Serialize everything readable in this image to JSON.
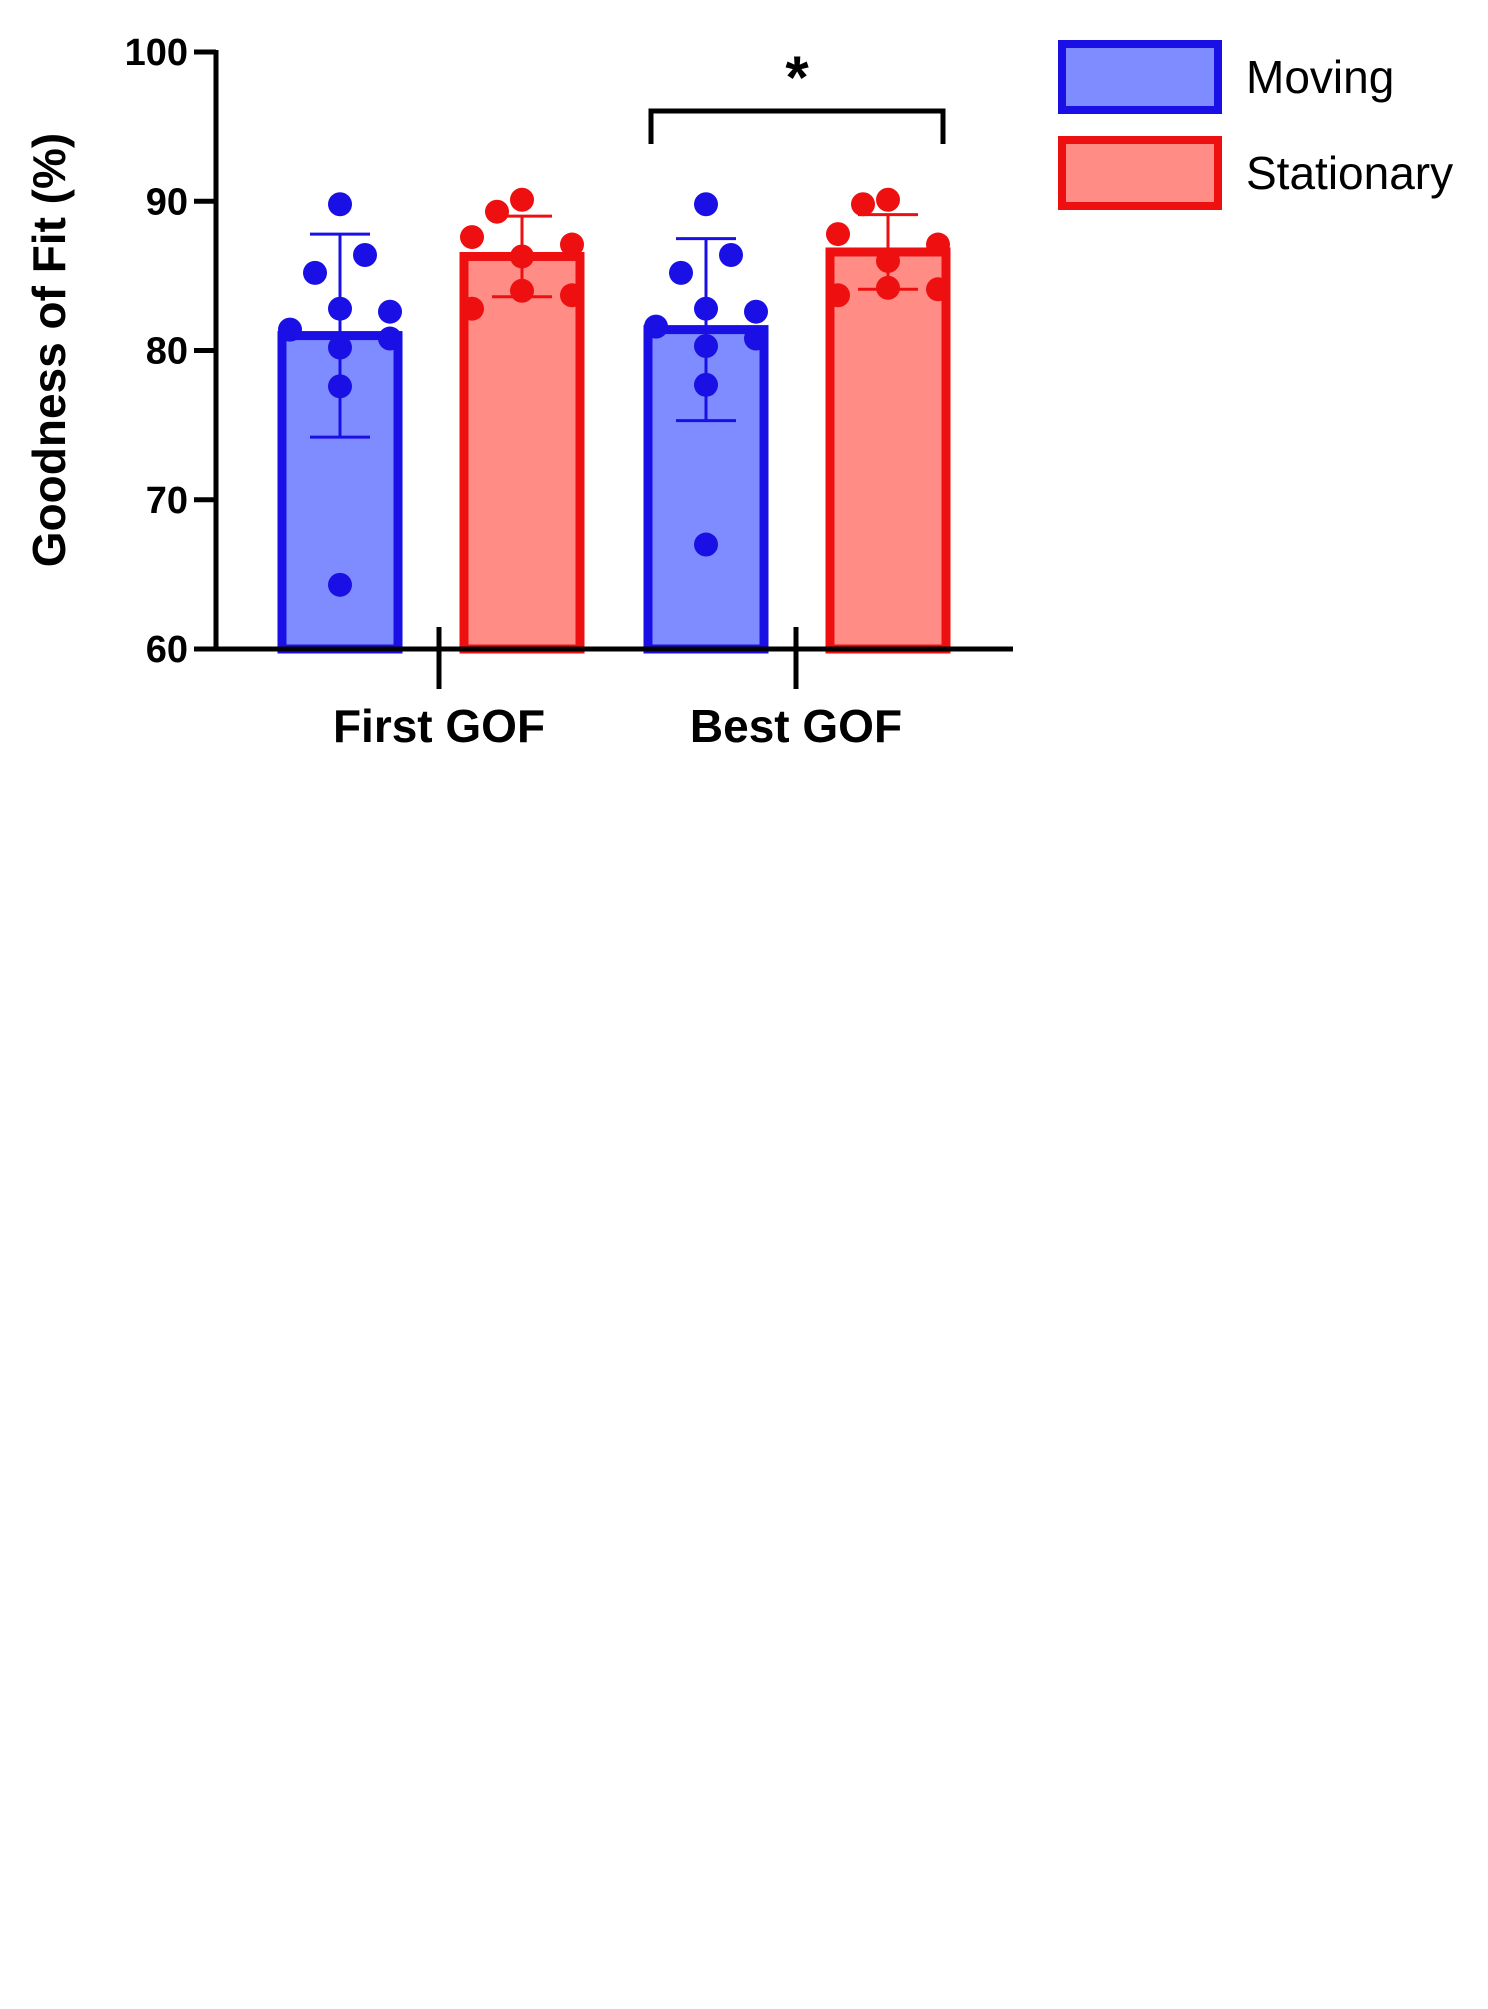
{
  "chart_data": {
    "type": "bar",
    "ylabel": "Goodness of Fit (%)",
    "ylim": [
      60,
      100
    ],
    "yticks": [
      60,
      70,
      80,
      90,
      100
    ],
    "categories": [
      "First GOF",
      "Best GOF"
    ],
    "series": [
      {
        "name": "Moving",
        "fill": "#7f8cff",
        "stroke": "#1a10e6",
        "values": [
          81.0,
          81.4
        ],
        "errors": [
          6.8,
          6.1
        ],
        "points": [
          [
            89.8,
            86.4,
            85.2,
            82.8,
            82.6,
            81.4,
            80.8,
            80.2,
            77.6,
            64.3
          ],
          [
            89.8,
            86.4,
            85.2,
            82.8,
            82.6,
            81.6,
            80.8,
            80.3,
            77.7,
            67.0
          ]
        ]
      },
      {
        "name": "Stationary",
        "fill": "#ff8c85",
        "stroke": "#ee1010",
        "values": [
          86.3,
          86.6
        ],
        "errors": [
          2.7,
          2.5
        ],
        "points": [
          [
            90.1,
            89.3,
            87.6,
            87.1,
            86.3,
            84.0,
            83.7,
            82.8
          ],
          [
            90.1,
            89.8,
            87.8,
            87.1,
            86.0,
            84.2,
            84.1,
            83.7
          ]
        ]
      }
    ],
    "annotation": {
      "text": "*",
      "between": "Best GOF"
    },
    "legend_position": "top-right",
    "grid": false
  }
}
